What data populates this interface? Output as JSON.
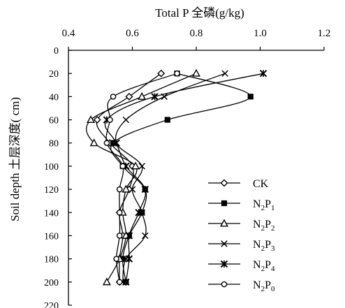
{
  "chart_data": {
    "type": "line",
    "x_axis": {
      "label": "Total P 全磷(g/kg)",
      "position": "top",
      "range": [
        0.4,
        1.2
      ],
      "ticks": [
        "0.4",
        "0.6",
        "0.8",
        "1.0",
        "1.2"
      ]
    },
    "y_axis": {
      "label": "Soil depth 土层深度( cm)",
      "inverted": true,
      "range": [
        0,
        220
      ],
      "ticks": [
        "0",
        "20",
        "40",
        "60",
        "80",
        "100",
        "120",
        "140",
        "160",
        "180",
        "200",
        "220"
      ]
    },
    "depths": [
      20,
      40,
      60,
      80,
      100,
      120,
      140,
      160,
      180,
      200
    ],
    "grid": false,
    "legend_position": "right",
    "series": [
      {
        "name": "CK",
        "label_main": "CK",
        "label_sub1": "",
        "label_mid": "",
        "label_sub2": "",
        "marker": "diamond",
        "values": [
          0.69,
          0.59,
          0.49,
          0.53,
          0.6,
          0.59,
          0.56,
          0.57,
          0.56,
          0.56
        ]
      },
      {
        "name": "N2P1",
        "label_main": "N",
        "label_sub1": "2",
        "label_mid": "P",
        "label_sub2": "1",
        "marker": "square",
        "values": [
          0.74,
          0.97,
          0.71,
          0.54,
          0.57,
          0.64,
          0.63,
          0.59,
          0.57,
          0.58
        ]
      },
      {
        "name": "N2P2",
        "label_main": "N",
        "label_sub1": "2",
        "label_mid": "P",
        "label_sub2": "2",
        "marker": "triangle",
        "values": [
          0.8,
          0.63,
          0.47,
          0.48,
          0.61,
          0.58,
          0.57,
          0.58,
          0.56,
          0.52
        ]
      },
      {
        "name": "N2P3",
        "label_main": "N",
        "label_sub1": "2",
        "label_mid": "P",
        "label_sub2": "3",
        "marker": "x",
        "values": [
          0.89,
          0.7,
          0.58,
          0.55,
          0.63,
          0.6,
          0.63,
          0.64,
          0.58,
          0.57
        ]
      },
      {
        "name": "N2P4",
        "label_main": "N",
        "label_sub1": "2",
        "label_mid": "P",
        "label_sub2": "4",
        "marker": "star",
        "values": [
          1.01,
          0.67,
          0.52,
          0.55,
          0.58,
          0.64,
          0.62,
          0.59,
          0.59,
          0.58
        ]
      },
      {
        "name": "N2P0",
        "label_main": "N",
        "label_sub1": "2",
        "label_mid": "P",
        "label_sub2": "0",
        "marker": "circle",
        "values": [
          0.74,
          0.54,
          0.53,
          0.52,
          0.57,
          0.56,
          0.56,
          0.56,
          0.55,
          0.56
        ]
      }
    ]
  }
}
